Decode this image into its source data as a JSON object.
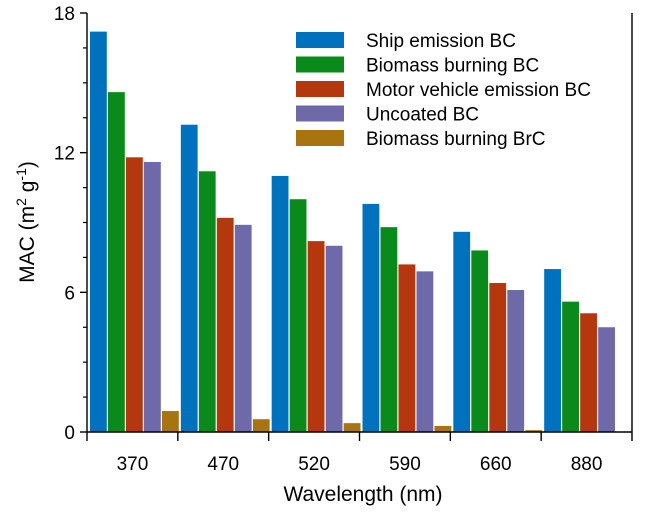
{
  "chart_data": {
    "type": "bar",
    "xlabel": "Wavelength (nm)",
    "ylabel": {
      "prefix": "MAC (m",
      "sup1": "2",
      "mid": " g",
      "sup2": "-1",
      "suffix": ")"
    },
    "ylim": [
      0,
      18
    ],
    "yticks": [
      "0",
      "6",
      "12",
      "18"
    ],
    "categories": [
      "370",
      "470",
      "520",
      "590",
      "660",
      "880"
    ],
    "series": [
      {
        "name": "Ship emission BC",
        "color": "#0072BD",
        "values": [
          17.2,
          13.2,
          11.0,
          9.8,
          8.6,
          7.0
        ]
      },
      {
        "name": "Biomass burning BC",
        "color": "#0A8A1A",
        "values": [
          14.6,
          11.2,
          10.0,
          8.8,
          7.8,
          5.6
        ]
      },
      {
        "name": "Motor vehicle emission BC",
        "color": "#B5370E",
        "values": [
          11.8,
          9.2,
          8.2,
          7.2,
          6.4,
          5.1
        ]
      },
      {
        "name": "Uncoated BC",
        "color": "#6E6AAA",
        "values": [
          11.6,
          8.9,
          8.0,
          6.9,
          6.1,
          4.5
        ]
      },
      {
        "name": "Biomass burning BrC",
        "color": "#A87410",
        "values": [
          0.9,
          0.55,
          0.38,
          0.26,
          0.08,
          0
        ]
      }
    ],
    "legend_position": "top-right",
    "grid": false
  }
}
